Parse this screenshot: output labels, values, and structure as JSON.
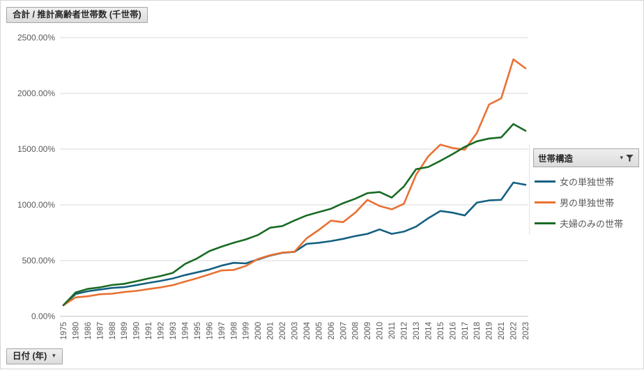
{
  "title_button": {
    "label": "合計 / 推計高齢者世帯数 (千世帯)"
  },
  "date_field_button": {
    "label": "日付 (年)",
    "arrow": "▼"
  },
  "legend": {
    "header": "世帯構造",
    "header_arrow": "▾",
    "filter_icon": "funnel-icon"
  },
  "colors": {
    "series_blue": "#156082",
    "series_orange": "#E97132",
    "series_green": "#196B24",
    "gridline": "#D9D9D9",
    "axis_line": "#BFBFBF",
    "tick_label": "#595959",
    "button_bg": "#E3E3E3",
    "button_border": "#A6A6A6"
  },
  "chart_data": {
    "type": "line",
    "title": "合計 / 推計高齢者世帯数 (千世帯)",
    "xlabel": "日付 (年)",
    "ylabel": "",
    "ylim": [
      0,
      2500
    ],
    "y_tick_step": 500,
    "y_tick_labels": [
      "0.00%",
      "500.00%",
      "1000.00%",
      "1500.00%",
      "2000.00%",
      "2500.00%"
    ],
    "grid": true,
    "legend_position": "right",
    "x": [
      "1975",
      "1980",
      "1986",
      "1987",
      "1988",
      "1989",
      "1990",
      "1991",
      "1992",
      "1993",
      "1994",
      "1995",
      "1996",
      "1997",
      "1998",
      "1999",
      "2000",
      "2001",
      "2002",
      "2003",
      "2004",
      "2005",
      "2006",
      "2007",
      "2008",
      "2009",
      "2010",
      "2011",
      "2012",
      "2013",
      "2014",
      "2015",
      "2016",
      "2017",
      "2018",
      "2019",
      "2021",
      "2022",
      "2023"
    ],
    "series": [
      {
        "name": "女の単独世帯",
        "color": "#156082",
        "values": [
          100,
          200,
          225,
          240,
          255,
          262,
          280,
          300,
          318,
          340,
          370,
          395,
          420,
          455,
          480,
          475,
          510,
          545,
          570,
          578,
          650,
          660,
          675,
          695,
          720,
          740,
          780,
          740,
          760,
          805,
          880,
          945,
          930,
          905,
          1020,
          1040,
          1045,
          1200,
          1180
        ]
      },
      {
        "name": "男の単独世帯",
        "color": "#E97132",
        "values": [
          100,
          170,
          180,
          198,
          203,
          218,
          228,
          245,
          260,
          280,
          312,
          342,
          377,
          412,
          416,
          452,
          515,
          548,
          572,
          580,
          700,
          775,
          858,
          845,
          930,
          1045,
          990,
          960,
          1010,
          1270,
          1435,
          1540,
          1510,
          1495,
          1645,
          1900,
          1955,
          2305,
          2225
        ]
      },
      {
        "name": "夫婦のみの世帯",
        "color": "#196B24",
        "values": [
          100,
          214,
          246,
          260,
          281,
          292,
          315,
          340,
          362,
          390,
          470,
          520,
          585,
          625,
          660,
          690,
          730,
          795,
          810,
          860,
          905,
          935,
          965,
          1015,
          1055,
          1105,
          1115,
          1065,
          1165,
          1320,
          1340,
          1395,
          1455,
          1520,
          1570,
          1595,
          1605,
          1725,
          1665
        ]
      }
    ]
  }
}
